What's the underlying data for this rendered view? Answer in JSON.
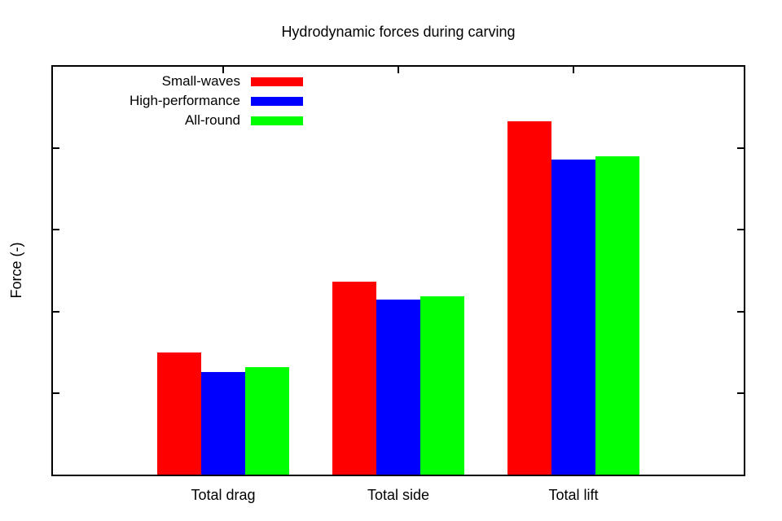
{
  "chart_data": {
    "type": "bar",
    "title": "Hydrodynamic forces during carving",
    "xlabel": "",
    "ylabel": "Force (-)",
    "categories": [
      "Total drag",
      "Total side",
      "Total lift"
    ],
    "series": [
      {
        "name": "Small-waves",
        "color": "#ff0000",
        "values": [
          1.5,
          2.37,
          4.33
        ]
      },
      {
        "name": "High-performance",
        "color": "#0000ff",
        "values": [
          1.26,
          2.15,
          3.86
        ]
      },
      {
        "name": "All-round",
        "color": "#00ff00",
        "values": [
          1.32,
          2.19,
          3.9
        ]
      }
    ],
    "ylim": [
      0,
      5
    ],
    "yticks": [
      1,
      2,
      3,
      4
    ],
    "ytick_labels_visible": false,
    "grid": false,
    "legend_position": "top-left-inside",
    "axis_color": "#000000",
    "background_color": "#ffffff"
  }
}
